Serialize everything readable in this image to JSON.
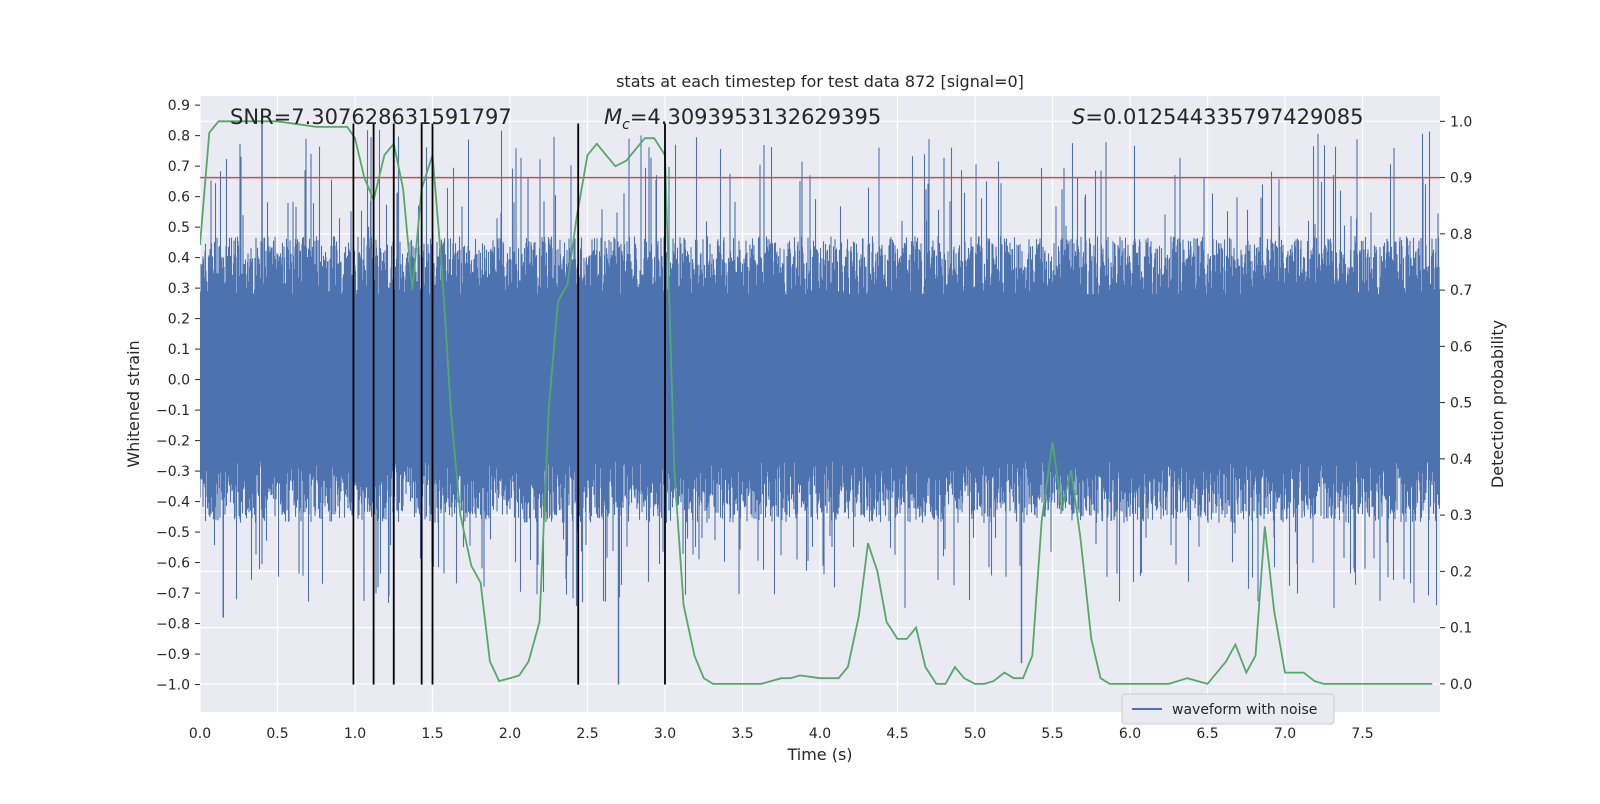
{
  "chart_data": {
    "type": "line",
    "title": "stats at each timestep for test data 872 [signal=0]",
    "xlabel": "Time (s)",
    "ylabel_left": "Whitened strain",
    "ylabel_right": "Detection probability",
    "xlim": [
      0.0,
      8.0
    ],
    "ylim_left": [
      -1.09,
      0.93
    ],
    "ylim_right": [
      -0.05,
      1.045
    ],
    "x_ticks": [
      0.0,
      0.5,
      1.0,
      1.5,
      2.0,
      2.5,
      3.0,
      3.5,
      4.0,
      4.5,
      5.0,
      5.5,
      6.0,
      6.5,
      7.0,
      7.5
    ],
    "x_tick_labels": [
      "0.0",
      "0.5",
      "1.0",
      "1.5",
      "2.0",
      "2.5",
      "3.0",
      "3.5",
      "4.0",
      "4.5",
      "5.0",
      "5.5",
      "6.0",
      "6.5",
      "7.0",
      "7.5"
    ],
    "left_ticks": [
      0.9,
      0.8,
      0.7,
      0.6,
      0.5,
      0.4,
      0.3,
      0.2,
      0.1,
      0.0,
      -0.1,
      -0.2,
      -0.3,
      -0.4,
      -0.5,
      -0.6,
      -0.7,
      -0.8,
      -0.9,
      -1.0
    ],
    "left_tick_labels": [
      "0.9",
      "0.8",
      "0.7",
      "0.6",
      "0.5",
      "0.4",
      "0.3",
      "0.2",
      "0.1",
      "0.0",
      "−0.1",
      "−0.2",
      "−0.3",
      "−0.4",
      "−0.5",
      "−0.6",
      "−0.7",
      "−0.8",
      "−0.9",
      "−1.0"
    ],
    "right_ticks": [
      1.0,
      0.9,
      0.8,
      0.7,
      0.6,
      0.5,
      0.4,
      0.3,
      0.2,
      0.1,
      0.0
    ],
    "right_tick_labels": [
      "1.0",
      "0.9",
      "0.8",
      "0.7",
      "0.6",
      "0.5",
      "0.4",
      "0.3",
      "0.2",
      "0.1",
      "0.0"
    ],
    "annotations": {
      "snr": "SNR=7.307628631591797",
      "mc_symbol": "M",
      "mc_sub": "c",
      "mc_value": "=4.3093953132629395",
      "s_symbol": "S",
      "s_value": "=0.012544335797429085"
    },
    "threshold": {
      "value": 0.9,
      "axis": "right",
      "color": "#c44e52"
    },
    "vertical_lines": {
      "x": [
        0.99,
        1.12,
        1.25,
        1.43,
        1.5,
        2.44,
        3.0
      ],
      "ymin": -1.0,
      "ymax": 0.84,
      "color": "#000000"
    },
    "series": [
      {
        "name": "waveform with noise",
        "axis": "left",
        "color": "#4c72b0",
        "style": "dense-noise",
        "sample_rate_hz": 4096,
        "core_band": [
          -0.27,
          0.28
        ],
        "typical_envelope": [
          -0.47,
          0.47
        ],
        "peak_range": [
          -1.0,
          0.85
        ]
      },
      {
        "name": "detection probability",
        "axis": "right",
        "color": "#55a868",
        "x": [
          0.0,
          0.06,
          0.12,
          0.25,
          0.5,
          0.75,
          0.88,
          0.95,
          1.0,
          1.06,
          1.12,
          1.19,
          1.25,
          1.31,
          1.37,
          1.43,
          1.5,
          1.56,
          1.62,
          1.68,
          1.75,
          1.81,
          1.87,
          1.93,
          2.0,
          2.06,
          2.12,
          2.19,
          2.25,
          2.31,
          2.37,
          2.43,
          2.5,
          2.56,
          2.62,
          2.68,
          2.75,
          2.81,
          2.87,
          2.93,
          3.0,
          3.06,
          3.12,
          3.19,
          3.25,
          3.31,
          3.37,
          3.5,
          3.62,
          3.75,
          3.81,
          3.87,
          4.0,
          4.12,
          4.18,
          4.25,
          4.31,
          4.37,
          4.43,
          4.5,
          4.56,
          4.62,
          4.68,
          4.75,
          4.81,
          4.87,
          4.93,
          5.0,
          5.06,
          5.12,
          5.19,
          5.25,
          5.31,
          5.37,
          5.43,
          5.5,
          5.56,
          5.62,
          5.68,
          5.75,
          5.81,
          5.87,
          6.0,
          6.25,
          6.37,
          6.5,
          6.62,
          6.68,
          6.75,
          6.81,
          6.87,
          6.93,
          7.0,
          7.06,
          7.12,
          7.19,
          7.25,
          7.5,
          7.75,
          7.95
        ],
        "y": [
          0.78,
          0.98,
          1.0,
          1.0,
          1.0,
          0.99,
          0.99,
          0.99,
          0.97,
          0.9,
          0.86,
          0.94,
          0.96,
          0.88,
          0.7,
          0.88,
          0.94,
          0.74,
          0.48,
          0.3,
          0.21,
          0.18,
          0.04,
          0.005,
          0.01,
          0.015,
          0.04,
          0.11,
          0.49,
          0.68,
          0.71,
          0.83,
          0.94,
          0.96,
          0.94,
          0.92,
          0.93,
          0.95,
          0.97,
          0.97,
          0.94,
          0.38,
          0.14,
          0.05,
          0.01,
          0.0,
          0.0,
          0.0,
          0.0,
          0.01,
          0.01,
          0.015,
          0.01,
          0.01,
          0.03,
          0.12,
          0.25,
          0.2,
          0.11,
          0.08,
          0.08,
          0.1,
          0.03,
          0.0,
          0.0,
          0.03,
          0.01,
          0.0,
          0.0,
          0.005,
          0.02,
          0.01,
          0.01,
          0.05,
          0.29,
          0.43,
          0.31,
          0.38,
          0.26,
          0.08,
          0.01,
          0.0,
          0.0,
          0.0,
          0.01,
          0.0,
          0.04,
          0.07,
          0.02,
          0.05,
          0.28,
          0.13,
          0.02,
          0.02,
          0.02,
          0.005,
          0.0,
          0.0,
          0.0,
          0.0
        ]
      }
    ],
    "legend": {
      "entries": [
        "waveform with noise"
      ],
      "location": "lower-right"
    }
  }
}
